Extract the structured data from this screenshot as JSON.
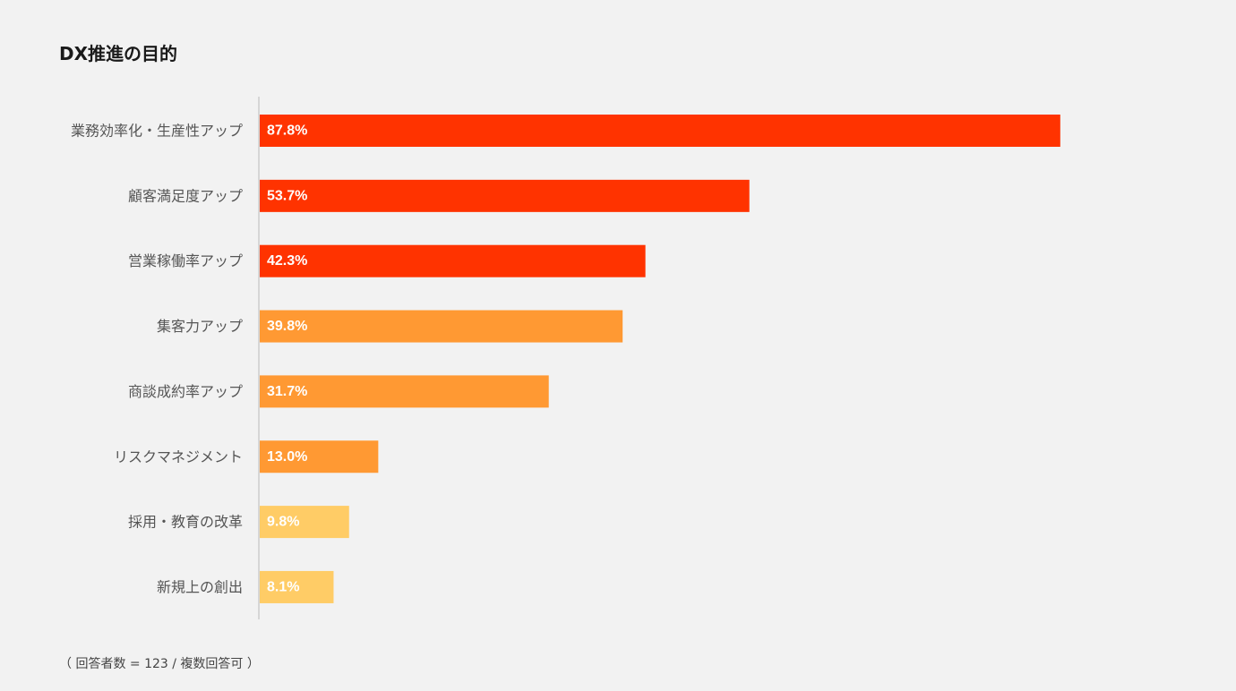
{
  "chart_data": {
    "type": "bar",
    "orientation": "horizontal",
    "title": "DX推進の目的",
    "note": "（ 回答者数 = 123 / 複数回答可 ）",
    "categories": [
      "業務効率化・生産性アップ",
      "顧客満足度アップ",
      "営業稼働率アップ",
      "集客力アップ",
      "商談成約率アップ",
      "リスクマネジメント",
      "採用・教育の改革",
      "新規上の創出"
    ],
    "values": [
      87.8,
      53.7,
      42.3,
      39.8,
      31.7,
      13.0,
      9.8,
      8.1
    ],
    "value_labels": [
      "87.8%",
      "53.7%",
      "42.3%",
      "39.8%",
      "31.7%",
      "13.0%",
      "9.8%",
      "8.1%"
    ],
    "bar_colors": [
      "#ff3300",
      "#ff3300",
      "#ff3300",
      "#ff9933",
      "#ff9933",
      "#ff9933",
      "#ffcc66",
      "#ffcc66"
    ],
    "xlim": [
      0,
      100
    ],
    "grid": false,
    "legend": "none"
  },
  "colors": {
    "background": "#f2f2f2",
    "axis_line": "#cccccc",
    "category_text": "#555555",
    "value_text": "#ffffff"
  }
}
